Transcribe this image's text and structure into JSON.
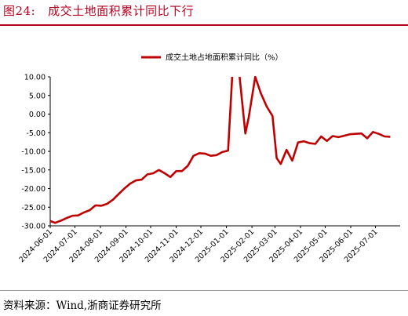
{
  "header": {
    "figure_number": "图24:",
    "title": "成交土地面积累计同比下行"
  },
  "source": "资料来源：Wind,浙商证券研究所",
  "chart_data": {
    "type": "line",
    "title": "成交土地面积累计同比下行",
    "xlabel": "",
    "ylabel": "",
    "ylim": [
      -30,
      10
    ],
    "yticks": [
      -30,
      -25,
      -20,
      -15,
      -10,
      -5,
      0,
      5,
      10
    ],
    "ytick_labels": [
      "-30.00",
      "-25.00",
      "-20.00",
      "-15.00",
      "-10.00",
      "-5.00",
      "0.00",
      "5.00",
      "10.00"
    ],
    "xlim": [
      "2024-06-01",
      "2025-07-31"
    ],
    "xtick_labels": [
      "2024-06-01",
      "2024-07-01",
      "2024-08-01",
      "2024-09-01",
      "2024-10-01",
      "2024-11-01",
      "2024-12-01",
      "2025-01-01",
      "2025-02-01",
      "2025-03-01",
      "2025-04-01",
      "2025-05-01",
      "2025-06-01",
      "2025-07-01"
    ],
    "grid": false,
    "legend_position": "top-center",
    "series": [
      {
        "name": "成交土地占地面积累计同比（%）",
        "color": "#c00000",
        "x": [
          "2024-06-01",
          "2024-06-07",
          "2024-06-14",
          "2024-06-21",
          "2024-06-28",
          "2024-07-05",
          "2024-07-12",
          "2024-07-19",
          "2024-07-26",
          "2024-08-02",
          "2024-08-09",
          "2024-08-16",
          "2024-08-23",
          "2024-08-30",
          "2024-09-06",
          "2024-09-13",
          "2024-09-20",
          "2024-09-27",
          "2024-10-04",
          "2024-10-11",
          "2024-10-18",
          "2024-10-25",
          "2024-11-01",
          "2024-11-08",
          "2024-11-15",
          "2024-11-22",
          "2024-11-29",
          "2024-12-06",
          "2024-12-13",
          "2024-12-20",
          "2024-12-27",
          "2025-01-03",
          "2025-01-08",
          "2025-01-10",
          "2025-01-14",
          "2025-01-17",
          "2025-01-24",
          "2025-01-28",
          "2025-02-05",
          "2025-02-12",
          "2025-02-19",
          "2025-02-26",
          "2025-03-03",
          "2025-03-08",
          "2025-03-15",
          "2025-03-22",
          "2025-03-29",
          "2025-04-05",
          "2025-04-12",
          "2025-04-19",
          "2025-04-26",
          "2025-05-03",
          "2025-05-10",
          "2025-05-17",
          "2025-05-24",
          "2025-05-31",
          "2025-06-07",
          "2025-06-14",
          "2025-06-21",
          "2025-06-28",
          "2025-07-05",
          "2025-07-12",
          "2025-07-19"
        ],
        "y": [
          -28.7,
          -29.2,
          -28.6,
          -27.9,
          -27.3,
          -27.2,
          -26.4,
          -25.8,
          -24.5,
          -24.6,
          -24.1,
          -23.0,
          -21.5,
          -20.0,
          -18.7,
          -17.8,
          -17.6,
          -16.2,
          -15.9,
          -15.0,
          -15.9,
          -16.9,
          -15.3,
          -15.3,
          -13.9,
          -11.2,
          -10.5,
          -10.6,
          -11.2,
          -11.0,
          -10.2,
          -9.8,
          10.0,
          null,
          null,
          10.0,
          -5.2,
          -1.0,
          10.0,
          5.5,
          2.0,
          -0.5,
          -11.8,
          -13.4,
          -9.6,
          -12.5,
          -7.6,
          -7.3,
          -7.8,
          -8.0,
          -6.0,
          -7.2,
          -5.9,
          -6.2,
          -5.8,
          -5.4,
          -5.3,
          -5.2,
          -6.5,
          -4.8,
          -5.3,
          -6.0,
          -6.1
        ]
      }
    ]
  }
}
